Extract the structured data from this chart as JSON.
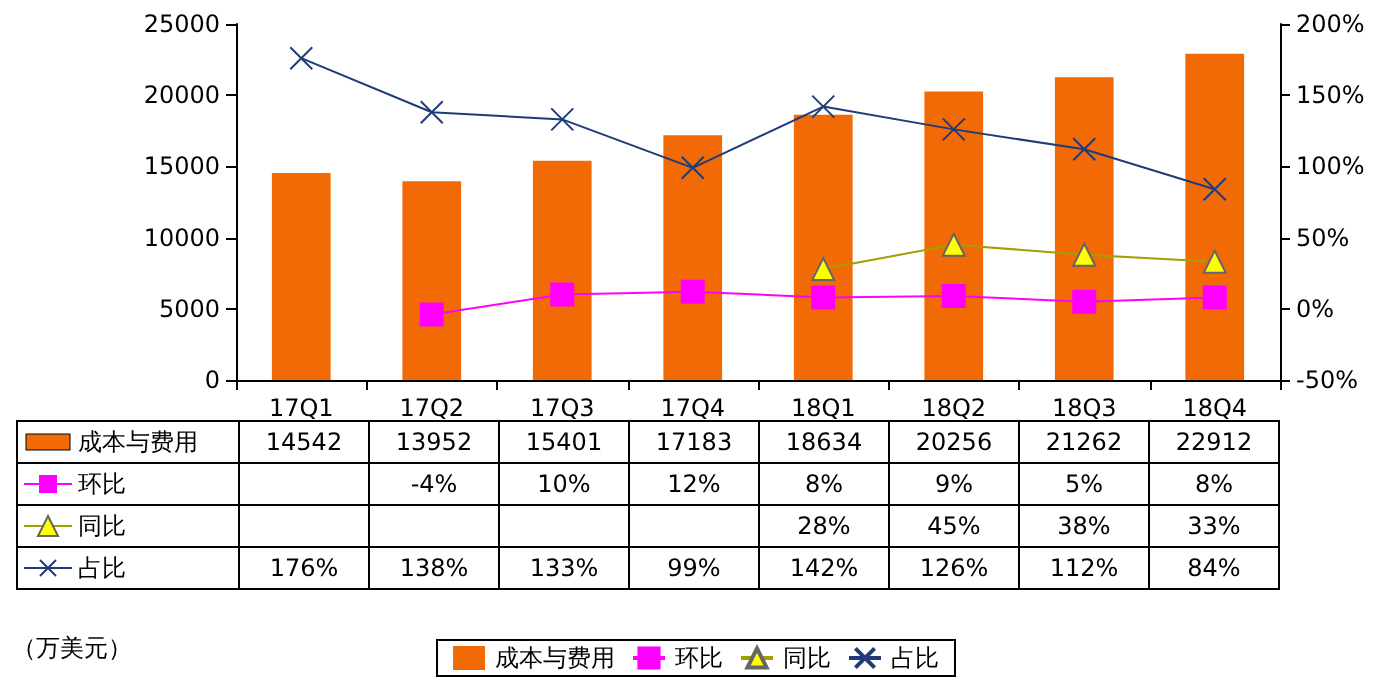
{
  "chart_data": {
    "type": "bar",
    "annotations": [
      "（万美元）"
    ],
    "categories": [
      "17Q1",
      "17Q2",
      "17Q3",
      "17Q4",
      "18Q1",
      "18Q2",
      "18Q3",
      "18Q4"
    ],
    "series": [
      {
        "name": "成本与费用",
        "color": "#f26a06",
        "values": [
          14542,
          13952,
          15401,
          17183,
          18634,
          20256,
          21262,
          22912
        ],
        "value_labels": [
          "14542",
          "13952",
          "15401",
          "17183",
          "18634",
          "20256",
          "21262",
          "22912"
        ]
      },
      {
        "name": "环比",
        "type": "line",
        "axis": "y2",
        "marker": "square",
        "color": "#ff00ff",
        "values": [
          null,
          -4,
          10,
          12,
          8,
          9,
          5,
          8
        ],
        "value_labels": [
          null,
          "-4%",
          "10%",
          "12%",
          "8%",
          "9%",
          "5%",
          "8%"
        ]
      },
      {
        "name": "同比",
        "type": "line",
        "axis": "y2",
        "marker": "triangle",
        "color": "#ffff00",
        "values": [
          null,
          null,
          null,
          null,
          28,
          45,
          38,
          33
        ],
        "value_labels": [
          null,
          null,
          null,
          null,
          "28%",
          "45%",
          "38%",
          "33%"
        ]
      },
      {
        "name": "占比",
        "type": "line",
        "axis": "y2",
        "marker": "cross",
        "color": "#1f3c78",
        "values": [
          176,
          138,
          133,
          99,
          142,
          126,
          112,
          84
        ],
        "value_labels": [
          "176%",
          "138%",
          "133%",
          "99%",
          "142%",
          "126%",
          "112%",
          "84%"
        ]
      }
    ],
    "ylim": [
      0,
      25000
    ],
    "yticks": [
      0,
      5000,
      10000,
      15000,
      20000,
      25000
    ],
    "y2lim": [
      -50,
      200
    ],
    "y2ticks": [
      {
        "value": -50,
        "label": "-50%"
      },
      {
        "value": 0,
        "label": "0%"
      },
      {
        "value": 50,
        "label": "50%"
      },
      {
        "value": 100,
        "label": "100%"
      },
      {
        "value": 150,
        "label": "150%"
      },
      {
        "value": 200,
        "label": "200%"
      }
    ],
    "grid": false,
    "legend": "bottom"
  }
}
